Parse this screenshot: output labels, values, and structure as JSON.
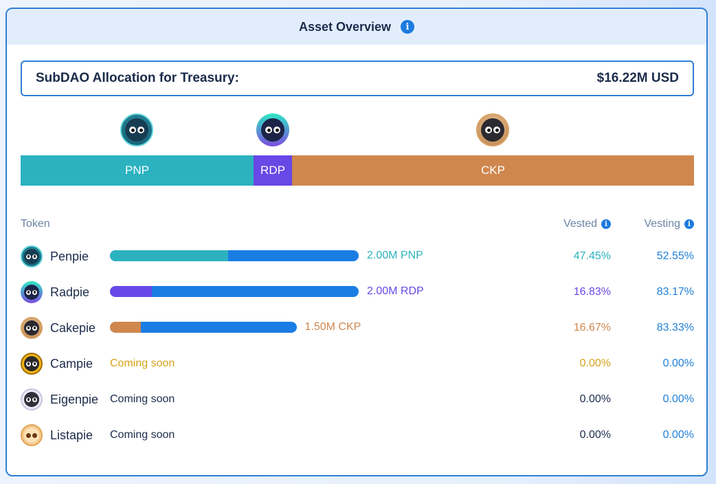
{
  "header": {
    "title": "Asset Overview"
  },
  "allocation": {
    "label": "SubDAO Allocation for Treasury:",
    "value": "$16.22M USD"
  },
  "segments": [
    {
      "token": "PNP",
      "share": 0.346,
      "color": "#2cb2bf"
    },
    {
      "token": "RDP",
      "share": 0.057,
      "color": "#6848e6"
    },
    {
      "token": "CKP",
      "share": 0.597,
      "color": "#cf874e"
    }
  ],
  "table": {
    "columns": {
      "token": "Token",
      "vested": "Vested",
      "vesting": "Vesting"
    },
    "rows": [
      {
        "name": "Penpie",
        "amount": "2.00M PNP",
        "vested_fraction": 0.4745,
        "bar_scale": 1.0,
        "vested": "47.45%",
        "vesting": "52.55%",
        "color": "#2cb2bf",
        "icon": "penpie-icon"
      },
      {
        "name": "Radpie",
        "amount": "2.00M RDP",
        "vested_fraction": 0.1683,
        "bar_scale": 1.0,
        "vested": "16.83%",
        "vesting": "83.17%",
        "color": "#6848e6",
        "icon": "radpie-icon"
      },
      {
        "name": "Cakepie",
        "amount": "1.50M CKP",
        "vested_fraction": 0.1667,
        "bar_scale": 0.75,
        "vested": "16.67%",
        "vesting": "83.33%",
        "color": "#cf874e",
        "icon": "cakepie-icon"
      },
      {
        "name": "Campie",
        "status": "Coming soon",
        "vested": "0.00%",
        "vesting": "0.00%",
        "color": "#d4a21a",
        "icon": "campie-icon"
      },
      {
        "name": "Eigenpie",
        "status": "Coming soon",
        "vested": "0.00%",
        "vesting": "0.00%",
        "color": "#1b2b4a",
        "icon": "eigenpie-icon"
      },
      {
        "name": "Listapie",
        "status": "Coming soon",
        "vested": "0.00%",
        "vesting": "0.00%",
        "color": "#1b2b4a",
        "icon": "listapie-icon"
      }
    ]
  }
}
